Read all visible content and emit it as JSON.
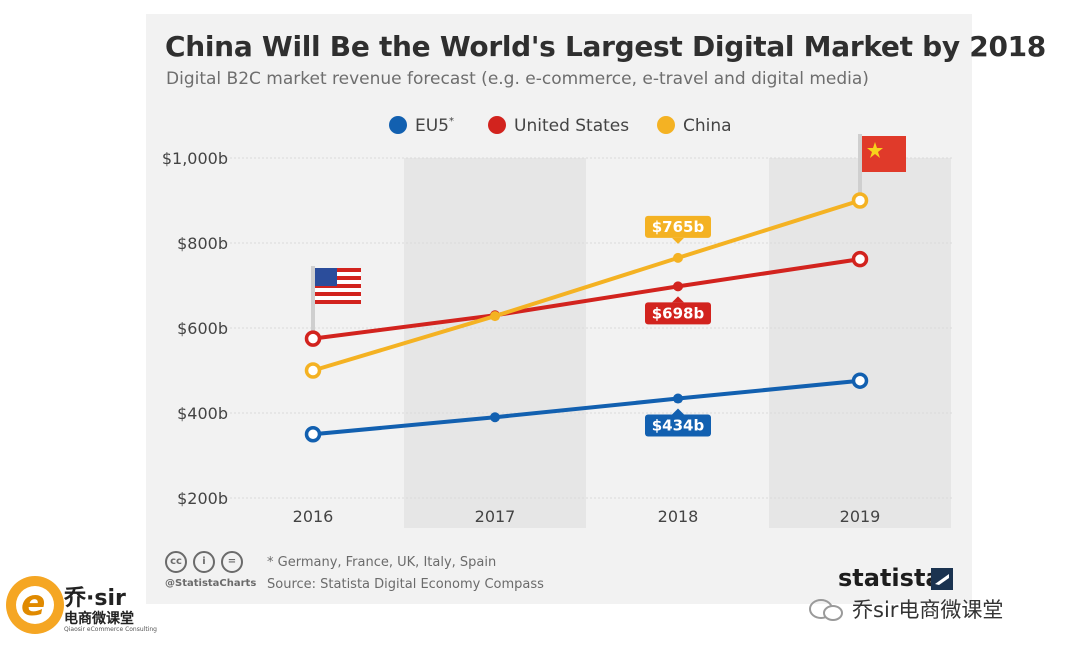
{
  "header": {
    "title": "China Will Be the World's Largest Digital Market by 2018",
    "subtitle": "Digital B2C market revenue forecast (e.g. e-commerce, e-travel and digital media)"
  },
  "chart_data": {
    "type": "line",
    "x": [
      "2016",
      "2017",
      "2018",
      "2019"
    ],
    "yticks": [
      "$1,000b",
      "$800b",
      "$600b",
      "$400b",
      "$200b"
    ],
    "ylim": [
      200,
      1000
    ],
    "grid": true,
    "legend_position": "top",
    "series": [
      {
        "name": "EU5",
        "name_sup": "*",
        "color": "#1260b0",
        "values": [
          350,
          390,
          434,
          476
        ]
      },
      {
        "name": "United States",
        "color": "#d2231e",
        "values": [
          575,
          630,
          698,
          762
        ]
      },
      {
        "name": "China",
        "color": "#f4b223",
        "values": [
          500,
          628,
          765,
          900
        ]
      }
    ],
    "annotations": [
      {
        "series": 2,
        "point": 2,
        "label": "$765b",
        "placement": "above"
      },
      {
        "series": 1,
        "point": 2,
        "label": "$698b",
        "placement": "below"
      },
      {
        "series": 0,
        "point": 2,
        "label": "$434b",
        "placement": "below"
      }
    ]
  },
  "footer": {
    "note": "* Germany, France, UK, Italy, Spain",
    "source": "Source: Statista Digital Economy Compass",
    "handle": "@StatistaCharts",
    "cc_icons": [
      "cc",
      "i",
      "="
    ],
    "brand": "statista"
  },
  "watermark": {
    "left_logo_text": "乔·sir",
    "left_logo_sub": "电商微课堂",
    "left_logo_tiny": "Qiaosir eCommerce Consulting",
    "wechat_text": "乔sir电商微课堂"
  },
  "icons": [
    "us-flag-icon",
    "china-flag-icon",
    "creative-commons-icon",
    "attribution-icon",
    "no-derivatives-icon",
    "statista-logo-icon",
    "wechat-icon"
  ]
}
